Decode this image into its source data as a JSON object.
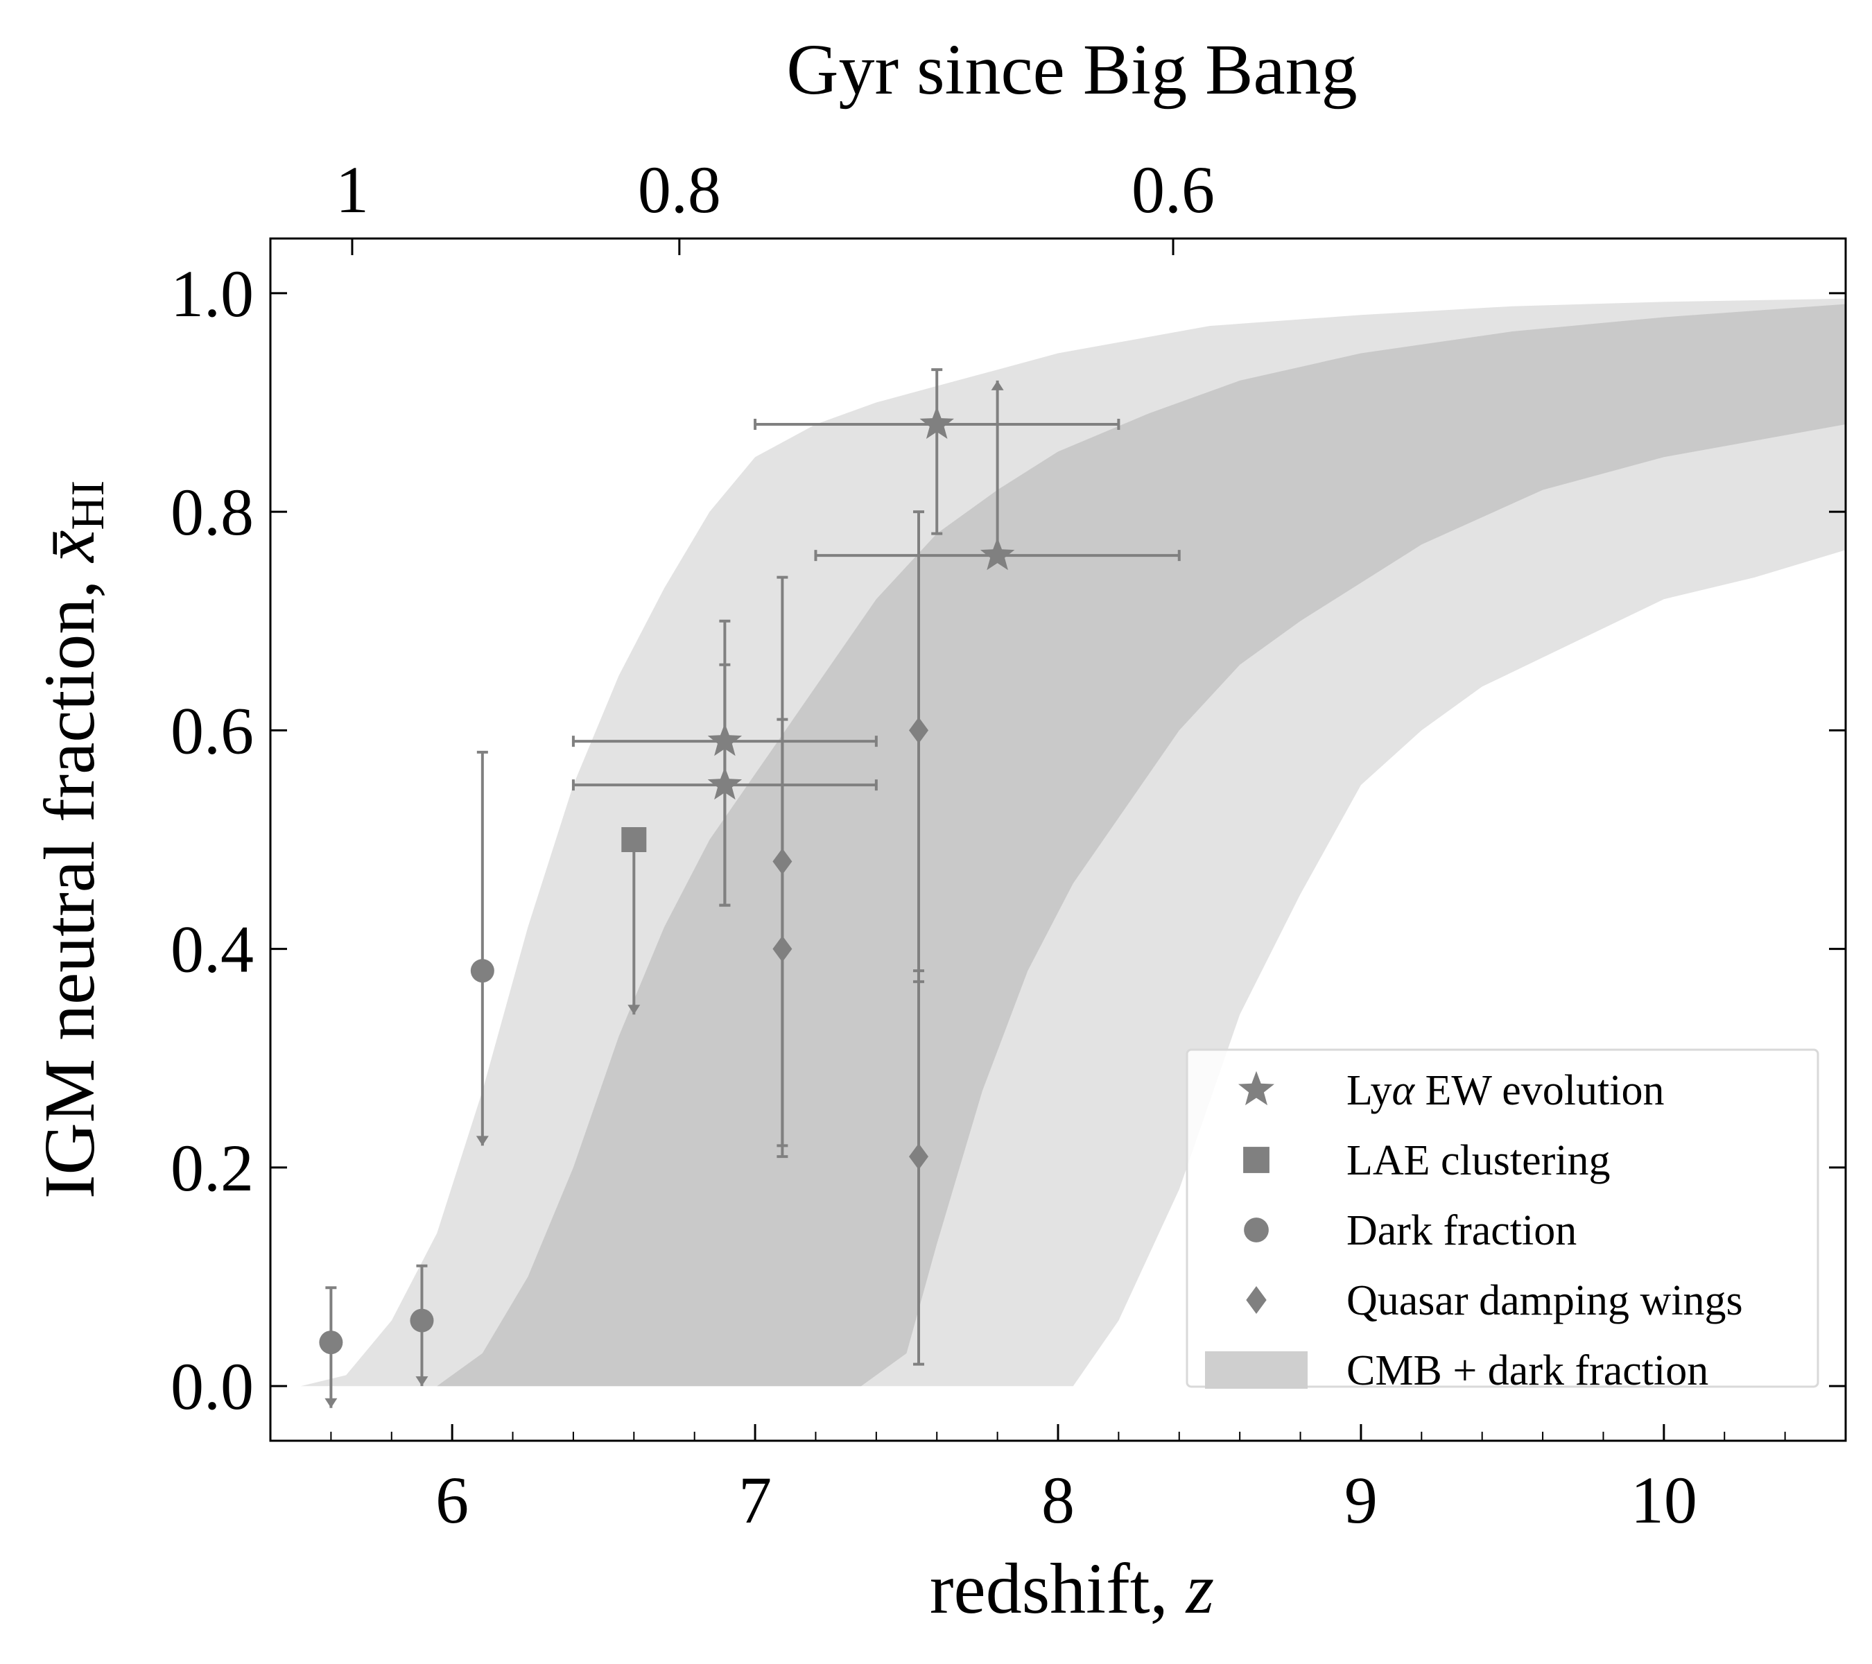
{
  "chart_data": {
    "type": "scatter",
    "xlabel_text": "redshift, ",
    "xlabel_var": "z",
    "ylabel_text": "IGM neutral fraction, ",
    "ylabel_var": "x̄",
    "ylabel_sub": "HI",
    "top_xlabel": "Gyr since Big Bang",
    "xlim": [
      5.4,
      10.6
    ],
    "ylim": [
      -0.05,
      1.05
    ],
    "x_ticks": [
      6,
      7,
      8,
      9,
      10
    ],
    "x_tick_labels": [
      "6",
      "7",
      "8",
      "9",
      "10"
    ],
    "y_ticks": [
      0.0,
      0.2,
      0.4,
      0.6,
      0.8,
      1.0
    ],
    "y_tick_labels": [
      "0.0",
      "0.2",
      "0.4",
      "0.6",
      "0.8",
      "1.0"
    ],
    "top_ticks": [
      {
        "label": "1",
        "z": 5.67
      },
      {
        "label": "0.8",
        "z": 6.75
      },
      {
        "label": "0.6",
        "z": 8.38
      }
    ],
    "grid": false,
    "legend_position": "lower-right",
    "colors": {
      "marker": "#808080",
      "band_outer": "#e3e3e3",
      "band_inner": "#c9c9c9",
      "legend_patch": "#cfcfcf"
    },
    "legend": [
      {
        "label_parts": [
          "Ly",
          "α",
          " EW evolution"
        ],
        "marker": "star"
      },
      {
        "label_parts": [
          "LAE clustering",
          "",
          ""
        ],
        "marker": "square"
      },
      {
        "label_parts": [
          "Dark fraction",
          "",
          ""
        ],
        "marker": "circle"
      },
      {
        "label_parts": [
          "Quasar damping wings",
          "",
          ""
        ],
        "marker": "diamond"
      },
      {
        "label_parts": [
          "CMB + dark fraction",
          "",
          ""
        ],
        "marker": "patch"
      }
    ],
    "bands": {
      "outer": {
        "upper": [
          [
            5.5,
            0.0
          ],
          [
            5.65,
            0.01
          ],
          [
            5.8,
            0.06
          ],
          [
            5.95,
            0.14
          ],
          [
            6.1,
            0.27
          ],
          [
            6.25,
            0.42
          ],
          [
            6.4,
            0.55
          ],
          [
            6.55,
            0.65
          ],
          [
            6.7,
            0.73
          ],
          [
            6.85,
            0.8
          ],
          [
            7.0,
            0.85
          ],
          [
            7.2,
            0.88
          ],
          [
            7.4,
            0.9
          ],
          [
            7.6,
            0.915
          ],
          [
            7.8,
            0.93
          ],
          [
            8.0,
            0.945
          ],
          [
            8.2,
            0.955
          ],
          [
            8.5,
            0.97
          ],
          [
            9.0,
            0.98
          ],
          [
            9.5,
            0.988
          ],
          [
            10.0,
            0.992
          ],
          [
            10.6,
            0.995
          ]
        ],
        "lower": [
          [
            10.6,
            0.765
          ],
          [
            10.3,
            0.74
          ],
          [
            10.0,
            0.72
          ],
          [
            9.7,
            0.68
          ],
          [
            9.4,
            0.64
          ],
          [
            9.2,
            0.6
          ],
          [
            9.0,
            0.55
          ],
          [
            8.8,
            0.45
          ],
          [
            8.6,
            0.34
          ],
          [
            8.4,
            0.18
          ],
          [
            8.2,
            0.06
          ],
          [
            8.05,
            0.0
          ],
          [
            5.5,
            0.0
          ]
        ]
      },
      "inner": {
        "upper": [
          [
            5.95,
            0.0
          ],
          [
            6.1,
            0.03
          ],
          [
            6.25,
            0.1
          ],
          [
            6.4,
            0.2
          ],
          [
            6.55,
            0.32
          ],
          [
            6.7,
            0.42
          ],
          [
            6.85,
            0.5
          ],
          [
            7.0,
            0.56
          ],
          [
            7.2,
            0.64
          ],
          [
            7.4,
            0.72
          ],
          [
            7.6,
            0.78
          ],
          [
            7.8,
            0.82
          ],
          [
            8.0,
            0.855
          ],
          [
            8.3,
            0.89
          ],
          [
            8.6,
            0.92
          ],
          [
            9.0,
            0.945
          ],
          [
            9.5,
            0.965
          ],
          [
            10.0,
            0.978
          ],
          [
            10.6,
            0.99
          ]
        ],
        "lower": [
          [
            10.6,
            0.88
          ],
          [
            10.0,
            0.85
          ],
          [
            9.6,
            0.82
          ],
          [
            9.2,
            0.77
          ],
          [
            8.8,
            0.7
          ],
          [
            8.6,
            0.66
          ],
          [
            8.4,
            0.6
          ],
          [
            8.2,
            0.52
          ],
          [
            8.05,
            0.46
          ],
          [
            7.9,
            0.38
          ],
          [
            7.75,
            0.27
          ],
          [
            7.6,
            0.13
          ],
          [
            7.5,
            0.03
          ],
          [
            7.35,
            0.0
          ],
          [
            5.95,
            0.0
          ]
        ]
      }
    },
    "series": [
      {
        "name": "Lyα EW evolution",
        "marker": "star",
        "points": [
          {
            "x": 7.6,
            "y": 0.88,
            "xerr": [
              0.6,
              0.6
            ],
            "yerr": [
              0.1,
              0.05
            ]
          },
          {
            "x": 7.8,
            "y": 0.76,
            "xerr": [
              0.6,
              0.6
            ],
            "yerr": null
          },
          {
            "x": 6.9,
            "y": 0.59,
            "xerr": [
              0.5,
              0.5
            ],
            "yerr": [
              0.15,
              0.11
            ]
          },
          {
            "x": 6.9,
            "y": 0.55,
            "xerr": [
              0.5,
              0.5
            ],
            "yerr": [
              0.11,
              0.11
            ]
          }
        ]
      },
      {
        "name": "LAE clustering",
        "marker": "square",
        "points": [
          {
            "x": 6.6,
            "y": 0.5,
            "upper_limit_to": 0.34
          }
        ]
      },
      {
        "name": "Dark fraction",
        "marker": "circle",
        "points": [
          {
            "x": 5.6,
            "y": 0.04,
            "yerr": [
              0.0,
              0.05
            ],
            "upper_limit_to": -0.02
          },
          {
            "x": 5.9,
            "y": 0.06,
            "yerr": [
              0.0,
              0.05
            ],
            "upper_limit_to": 0.0
          },
          {
            "x": 6.1,
            "y": 0.38,
            "yerr": [
              0.0,
              0.2
            ],
            "upper_limit_to": 0.22
          }
        ]
      },
      {
        "name": "Quasar damping wings",
        "marker": "diamond",
        "points": [
          {
            "x": 7.09,
            "y": 0.48,
            "yerr": [
              0.26,
              0.26
            ]
          },
          {
            "x": 7.09,
            "y": 0.4,
            "yerr": [
              0.19,
              0.21
            ]
          },
          {
            "x": 7.54,
            "y": 0.6,
            "yerr": [
              0.23,
              0.2
            ]
          },
          {
            "x": 7.54,
            "y": 0.21,
            "yerr": [
              0.19,
              0.17
            ]
          },
          {
            "x": 7.8,
            "y": 0.76,
            "lower_limit_to": 0.92
          }
        ]
      }
    ]
  }
}
